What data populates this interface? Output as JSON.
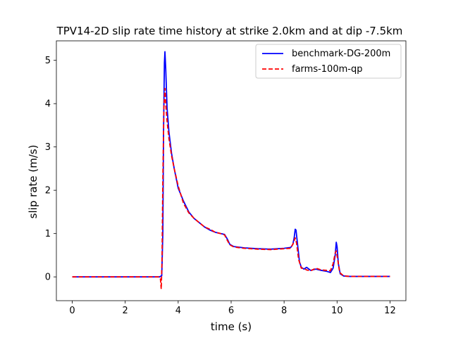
{
  "chart_data": {
    "type": "line",
    "title": "TPV14-2D slip rate time history at strike 2.0km and at dip -7.5km",
    "xlabel": "time (s)",
    "ylabel": "slip rate (m/s)",
    "xlim": [
      -0.6,
      12.6
    ],
    "ylim": [
      -0.55,
      5.45
    ],
    "xticks": [
      0,
      2,
      4,
      6,
      8,
      10,
      12
    ],
    "yticks": [
      0,
      1,
      2,
      3,
      4,
      5
    ],
    "grid": false,
    "legend_position": "top-right",
    "series": [
      {
        "name": "benchmark-DG-200m",
        "color": "#0000ff",
        "style": "solid",
        "points": [
          [
            0,
            0
          ],
          [
            3.3,
            0
          ],
          [
            3.38,
            0.03
          ],
          [
            3.42,
            1.0
          ],
          [
            3.45,
            3.5
          ],
          [
            3.48,
            4.95
          ],
          [
            3.5,
            5.2
          ],
          [
            3.53,
            4.8
          ],
          [
            3.58,
            3.9
          ],
          [
            3.65,
            3.35
          ],
          [
            3.75,
            2.85
          ],
          [
            3.85,
            2.5
          ],
          [
            4.0,
            2.05
          ],
          [
            4.2,
            1.75
          ],
          [
            4.4,
            1.5
          ],
          [
            4.6,
            1.35
          ],
          [
            4.8,
            1.25
          ],
          [
            5.0,
            1.15
          ],
          [
            5.2,
            1.08
          ],
          [
            5.4,
            1.03
          ],
          [
            5.6,
            1.0
          ],
          [
            5.75,
            0.98
          ],
          [
            5.85,
            0.88
          ],
          [
            5.95,
            0.75
          ],
          [
            6.1,
            0.7
          ],
          [
            6.5,
            0.67
          ],
          [
            7.0,
            0.65
          ],
          [
            7.5,
            0.64
          ],
          [
            8.0,
            0.66
          ],
          [
            8.25,
            0.68
          ],
          [
            8.33,
            0.75
          ],
          [
            8.38,
            0.9
          ],
          [
            8.42,
            1.1
          ],
          [
            8.45,
            1.08
          ],
          [
            8.5,
            0.8
          ],
          [
            8.58,
            0.35
          ],
          [
            8.65,
            0.22
          ],
          [
            8.75,
            0.18
          ],
          [
            8.85,
            0.22
          ],
          [
            9.0,
            0.15
          ],
          [
            9.2,
            0.18
          ],
          [
            9.4,
            0.15
          ],
          [
            9.6,
            0.13
          ],
          [
            9.75,
            0.1
          ],
          [
            9.85,
            0.2
          ],
          [
            9.93,
            0.5
          ],
          [
            9.97,
            0.8
          ],
          [
            10.0,
            0.7
          ],
          [
            10.05,
            0.3
          ],
          [
            10.12,
            0.07
          ],
          [
            10.25,
            0.02
          ],
          [
            10.5,
            0.01
          ],
          [
            12,
            0.01
          ]
        ]
      },
      {
        "name": "farms-100m-qp",
        "color": "#ff0000",
        "style": "dashed",
        "points": [
          [
            0,
            0
          ],
          [
            3.28,
            0
          ],
          [
            3.33,
            -0.05
          ],
          [
            3.36,
            -0.28
          ],
          [
            3.39,
            0.4
          ],
          [
            3.42,
            2.2
          ],
          [
            3.46,
            3.9
          ],
          [
            3.5,
            4.35
          ],
          [
            3.53,
            4.0
          ],
          [
            3.58,
            3.6
          ],
          [
            3.65,
            3.2
          ],
          [
            3.75,
            2.8
          ],
          [
            3.85,
            2.5
          ],
          [
            4.0,
            2.1
          ],
          [
            4.2,
            1.7
          ],
          [
            4.4,
            1.48
          ],
          [
            4.6,
            1.35
          ],
          [
            4.8,
            1.25
          ],
          [
            5.0,
            1.15
          ],
          [
            5.2,
            1.1
          ],
          [
            5.4,
            1.03
          ],
          [
            5.6,
            1.0
          ],
          [
            5.75,
            0.97
          ],
          [
            5.85,
            0.85
          ],
          [
            5.95,
            0.74
          ],
          [
            6.1,
            0.69
          ],
          [
            6.5,
            0.66
          ],
          [
            7.0,
            0.64
          ],
          [
            7.5,
            0.63
          ],
          [
            8.0,
            0.65
          ],
          [
            8.25,
            0.66
          ],
          [
            8.35,
            0.78
          ],
          [
            8.42,
            0.9
          ],
          [
            8.47,
            0.78
          ],
          [
            8.55,
            0.4
          ],
          [
            8.65,
            0.2
          ],
          [
            8.75,
            0.2
          ],
          [
            8.85,
            0.16
          ],
          [
            9.0,
            0.14
          ],
          [
            9.2,
            0.2
          ],
          [
            9.4,
            0.16
          ],
          [
            9.6,
            0.15
          ],
          [
            9.75,
            0.14
          ],
          [
            9.85,
            0.3
          ],
          [
            9.93,
            0.55
          ],
          [
            9.97,
            0.6
          ],
          [
            10.02,
            0.42
          ],
          [
            10.1,
            0.1
          ],
          [
            10.25,
            0.02
          ],
          [
            10.5,
            0.01
          ],
          [
            12,
            0.01
          ]
        ]
      }
    ]
  }
}
